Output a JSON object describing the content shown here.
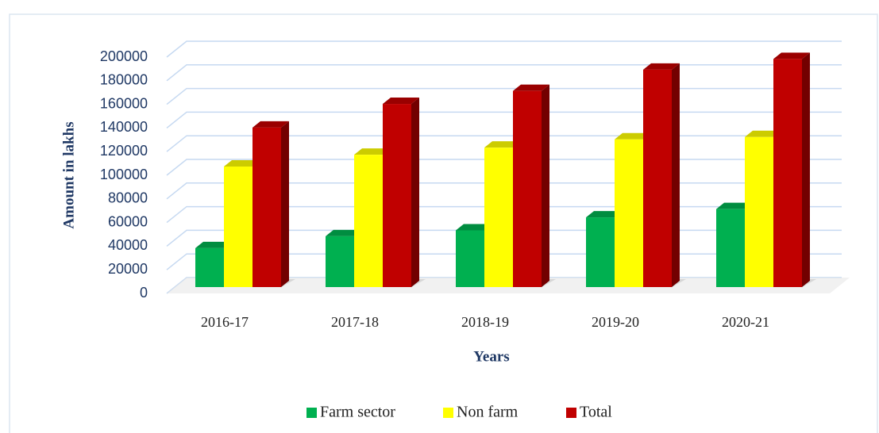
{
  "chart_data": {
    "type": "bar3d",
    "y_label": "Amount in lakhs",
    "x_label": "Years",
    "categories": [
      "2016-17",
      "2017-18",
      "2018-19",
      "2019-20",
      "2020-21"
    ],
    "series": [
      {
        "name": "Farm sector",
        "color": "#00b050",
        "values": [
          33000,
          43000,
          48000,
          59000,
          66000
        ]
      },
      {
        "name": "Non farm",
        "color": "#ffff00",
        "values": [
          102000,
          112000,
          118000,
          125000,
          127000
        ]
      },
      {
        "name": "Total",
        "color": "#c00000",
        "values": [
          135000,
          155000,
          166000,
          184000,
          193000
        ]
      }
    ],
    "ylim": [
      0,
      200000
    ],
    "yticks": [
      0,
      20000,
      40000,
      60000,
      80000,
      100000,
      120000,
      140000,
      160000,
      180000,
      200000
    ],
    "grid": true,
    "legend": "bottom"
  }
}
